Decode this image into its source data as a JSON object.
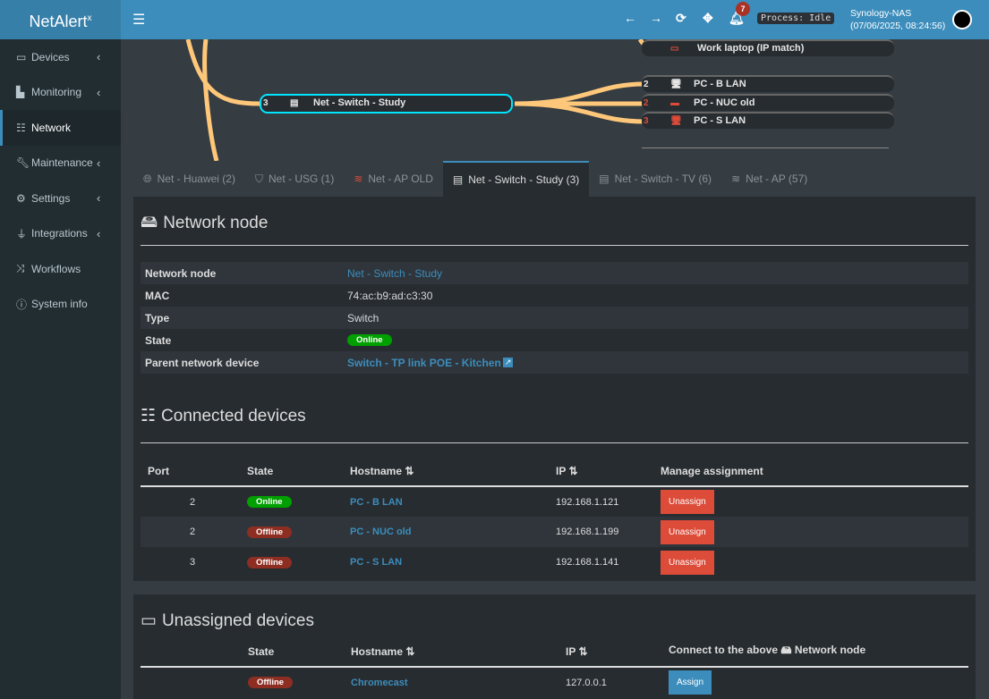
{
  "header": {
    "logo": "NetAlert",
    "logo_sup": "x",
    "notifications": "7",
    "process": "Process: Idle",
    "host": "Synology-NAS",
    "datetime": "(07/06/2025, 08:24:56)"
  },
  "sidebar": {
    "items": [
      {
        "label": "Devices",
        "icon": "laptop-icon"
      },
      {
        "label": "Monitoring",
        "icon": "chart-icon"
      },
      {
        "label": "Network",
        "icon": "sitemap-icon",
        "active": true
      },
      {
        "label": "Maintenance",
        "icon": "wrench-icon"
      },
      {
        "label": "Settings",
        "icon": "gear-icon"
      },
      {
        "label": "Integrations",
        "icon": "plug-icon"
      },
      {
        "label": "Workflows",
        "icon": "shuffle-icon"
      },
      {
        "label": "System info",
        "icon": "info-icon"
      }
    ]
  },
  "tree": {
    "selected": {
      "label": "Net - Switch - Study",
      "port": "3"
    },
    "nodes": [
      {
        "label": "Work laptop (IP match)",
        "port": ""
      },
      {
        "label": "PC - B LAN",
        "port": "2"
      },
      {
        "label": "PC - NUC old",
        "port": "2"
      },
      {
        "label": "PC - S LAN",
        "port": "3"
      }
    ],
    "link_color": "#ffc77a",
    "selected_border": "#00e5ff"
  },
  "tabs": [
    {
      "label": "Net - Huawei (2)"
    },
    {
      "label": "Net - USG (1)"
    },
    {
      "label": "Net - AP OLD"
    },
    {
      "label": "Net - Switch - Study (3)",
      "active": true
    },
    {
      "label": "Net - Switch - TV (6)"
    },
    {
      "label": "Net - AP (57)"
    }
  ],
  "node_info": {
    "title": "Network node",
    "rows": {
      "node_label": "Network node",
      "node_value": "Net - Switch - Study",
      "mac_label": "MAC",
      "mac_value": "74:ac:b9:ad:c3:30",
      "type_label": "Type",
      "type_value": "Switch",
      "state_label": "State",
      "state_value": "Online",
      "parent_label": "Parent network device",
      "parent_value": "Switch - TP link POE - Kitchen"
    }
  },
  "connected": {
    "title": "Connected devices",
    "headers": {
      "port": "Port",
      "state": "State",
      "hostname": "Hostname",
      "ip": "IP",
      "manage": "Manage assignment"
    },
    "rows": [
      {
        "port": "2",
        "state": "Online",
        "hostname": "PC - B LAN",
        "ip": "192.168.1.121",
        "action": "Unassign"
      },
      {
        "port": "2",
        "state": "Offline",
        "hostname": "PC - NUC old",
        "ip": "192.168.1.199",
        "action": "Unassign"
      },
      {
        "port": "3",
        "state": "Offline",
        "hostname": "PC - S LAN",
        "ip": "192.168.1.141",
        "action": "Unassign"
      }
    ]
  },
  "unassigned": {
    "title": "Unassigned devices",
    "headers": {
      "state": "State",
      "hostname": "Hostname",
      "ip": "IP",
      "connect": "Connect to the above",
      "connect2": "Network node"
    },
    "rows": [
      {
        "state": "Offline",
        "hostname": "Chromecast",
        "ip": "127.0.0.1",
        "action": "Assign"
      }
    ]
  }
}
